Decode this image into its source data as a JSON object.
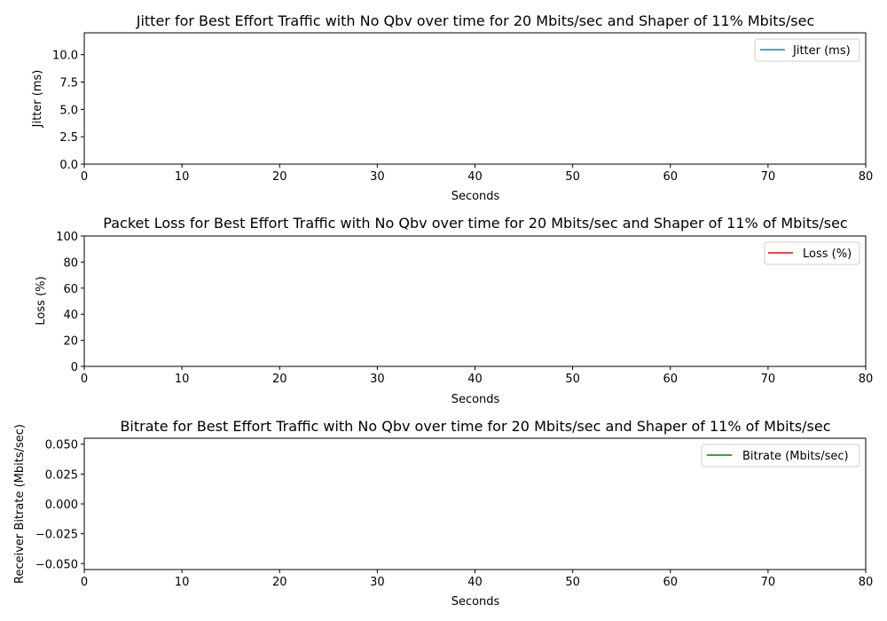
{
  "chart_data": [
    {
      "type": "line",
      "title": "Jitter for Best Effort Traffic with No Qbv over time for 20 Mbits/sec and Shaper of 11% Mbits/sec",
      "xlabel": "Seconds",
      "ylabel": "Jitter (ms)",
      "xlim": [
        0,
        80
      ],
      "ylim": [
        0,
        12
      ],
      "xticks": [
        "0",
        "10",
        "20",
        "30",
        "40",
        "50",
        "60",
        "70",
        "80"
      ],
      "yticks": [
        "0.0",
        "2.5",
        "5.0",
        "7.5",
        "10.0"
      ],
      "ytick_values": [
        0,
        2.5,
        5,
        7.5,
        10
      ],
      "series": [
        {
          "name": "Jitter (ms)",
          "color": "#1f77b4",
          "x": [],
          "y": []
        }
      ],
      "legend_position": "top-right",
      "grid": false
    },
    {
      "type": "line",
      "title": "Packet Loss for Best Effort Traffic with No Qbv over time for 20 Mbits/sec and Shaper of 11% of Mbits/sec",
      "xlabel": "Seconds",
      "ylabel": "Loss (%)",
      "xlim": [
        0,
        80
      ],
      "ylim": [
        0,
        100
      ],
      "xticks": [
        "0",
        "10",
        "20",
        "30",
        "40",
        "50",
        "60",
        "70",
        "80"
      ],
      "yticks": [
        "0",
        "20",
        "40",
        "60",
        "80",
        "100"
      ],
      "ytick_values": [
        0,
        20,
        40,
        60,
        80,
        100
      ],
      "series": [
        {
          "name": "Loss (%)",
          "color": "#ff0000",
          "x": [],
          "y": []
        }
      ],
      "legend_position": "top-right",
      "grid": false
    },
    {
      "type": "line",
      "title": "Bitrate for Best Effort Traffic with No Qbv over time for 20 Mbits/sec and Shaper of 11% of Mbits/sec",
      "xlabel": "Seconds",
      "ylabel": "Receiver Bitrate (Mbits/sec)",
      "xlim": [
        0,
        80
      ],
      "ylim": [
        -0.055,
        0.055
      ],
      "xticks": [
        "0",
        "10",
        "20",
        "30",
        "40",
        "50",
        "60",
        "70",
        "80"
      ],
      "yticks": [
        "−0.050",
        "−0.025",
        "0.000",
        "0.025",
        "0.050"
      ],
      "ytick_values": [
        -0.05,
        -0.025,
        0,
        0.025,
        0.05
      ],
      "series": [
        {
          "name": "Bitrate (Mbits/sec)",
          "color": "#008000",
          "x": [],
          "y": []
        }
      ],
      "legend_position": "top-right",
      "grid": false
    }
  ]
}
